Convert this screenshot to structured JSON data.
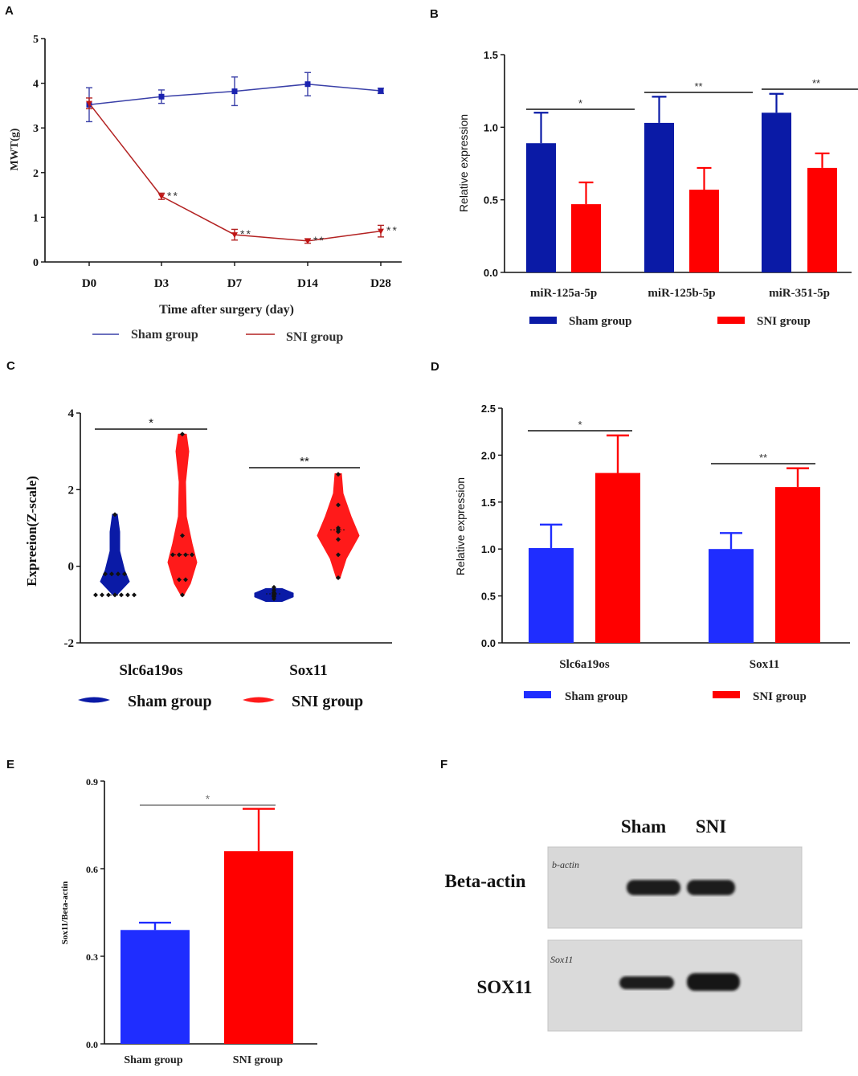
{
  "colors": {
    "sham_navy": "#0a1aa6",
    "sni_red": "#ff0000",
    "sham_blue": "#1f2dff",
    "lineA_sham": "#3a40a8",
    "lineA_sni": "#b32222",
    "axis": "#111111",
    "sig": "#555555",
    "blot_bg": "#d9d9d9",
    "band": "#1c1c1c"
  },
  "panels": {
    "A": "A",
    "B": "B",
    "C": "C",
    "D": "D",
    "E": "E",
    "F": "F"
  },
  "chart_data": [
    {
      "panel": "A",
      "type": "line",
      "xlabel": "Time after surgery (day)",
      "ylabel": "MWT(g)",
      "categories": [
        "D0",
        "D3",
        "D7",
        "D14",
        "D28"
      ],
      "ylim": [
        0,
        5
      ],
      "yticks": [
        0,
        1,
        2,
        3,
        4,
        5
      ],
      "series": [
        {
          "name": "Sham group",
          "values": [
            3.52,
            3.7,
            3.82,
            3.98,
            3.83
          ],
          "err": [
            0.38,
            0.15,
            0.32,
            0.26,
            0.06
          ],
          "sig": [
            "",
            "",
            "",
            "",
            ""
          ]
        },
        {
          "name": "SNI group",
          "values": [
            3.55,
            1.47,
            0.61,
            0.47,
            0.69
          ],
          "err": [
            0.12,
            0.07,
            0.12,
            0.05,
            0.13
          ],
          "sig": [
            "",
            "**",
            "**",
            "**",
            "**"
          ]
        }
      ]
    },
    {
      "panel": "B",
      "type": "bar",
      "ylabel": "Relative  expression",
      "categories": [
        "miR-125a-5p",
        "miR-125b-5p",
        "miR-351-5p"
      ],
      "ylim": [
        0,
        1.5
      ],
      "yticks": [
        "0.0",
        "0.5",
        "1.0",
        "1.5"
      ],
      "series": [
        {
          "name": "Sham group",
          "values": [
            0.89,
            1.03,
            1.1
          ],
          "err": [
            0.21,
            0.18,
            0.13
          ]
        },
        {
          "name": "SNI group",
          "values": [
            0.47,
            0.57,
            0.72
          ],
          "err": [
            0.15,
            0.15,
            0.1
          ]
        }
      ],
      "significance": [
        "*",
        "**",
        "**"
      ]
    },
    {
      "panel": "C",
      "type": "violin",
      "ylabel": "Expreeion(Z-scale)",
      "categories": [
        "Slc6a19os",
        "Sox11"
      ],
      "ylim": [
        -2,
        4
      ],
      "yticks": [
        "-2",
        "0",
        "2",
        "4"
      ],
      "series": [
        {
          "name": "Sham group",
          "points": [
            [
              -0.75,
              -0.75,
              -0.75,
              -0.75,
              -0.75,
              -0.75,
              -0.75,
              -0.2,
              -0.2,
              -0.2,
              -0.2,
              1.35
            ],
            [
              -0.85,
              -0.8,
              -0.78,
              -0.75,
              -0.72,
              -0.7,
              -0.68,
              -0.62,
              -0.55
            ]
          ]
        },
        {
          "name": "SNI group",
          "points": [
            [
              -0.75,
              -0.35,
              -0.35,
              0.3,
              0.3,
              0.3,
              0.3,
              0.8,
              3.45
            ],
            [
              -0.3,
              0.3,
              0.7,
              0.9,
              0.95,
              1.0,
              1.6,
              2.4
            ]
          ]
        }
      ],
      "significance": [
        "*",
        "**"
      ]
    },
    {
      "panel": "D",
      "type": "bar",
      "ylabel": "Relative  expression",
      "categories": [
        "Slc6a19os",
        "Sox11"
      ],
      "ylim": [
        0,
        2.5
      ],
      "yticks": [
        "0.0",
        "0.5",
        "1.0",
        "1.5",
        "2.0",
        "2.5"
      ],
      "series": [
        {
          "name": "Sham group",
          "values": [
            1.01,
            1.0
          ],
          "err": [
            0.25,
            0.17
          ]
        },
        {
          "name": "SNI group",
          "values": [
            1.81,
            1.66
          ],
          "err": [
            0.4,
            0.2
          ]
        }
      ],
      "significance": [
        "*",
        "**"
      ]
    },
    {
      "panel": "E",
      "type": "bar",
      "ylabel": "Sox11/Beta-actin",
      "categories": [
        "Sham group",
        "SNI group"
      ],
      "ylim": [
        0,
        0.9
      ],
      "yticks": [
        "0.0",
        "0.3",
        "0.6",
        "0.9"
      ],
      "values": [
        0.39,
        0.66
      ],
      "err": [
        0.025,
        0.145
      ],
      "significance": "*"
    }
  ],
  "blot": {
    "columns": [
      "Sham",
      "SNI"
    ],
    "rows": [
      "Beta-actin",
      "SOX11"
    ],
    "membrane_labels": [
      "b-actin",
      "Sox11"
    ]
  }
}
